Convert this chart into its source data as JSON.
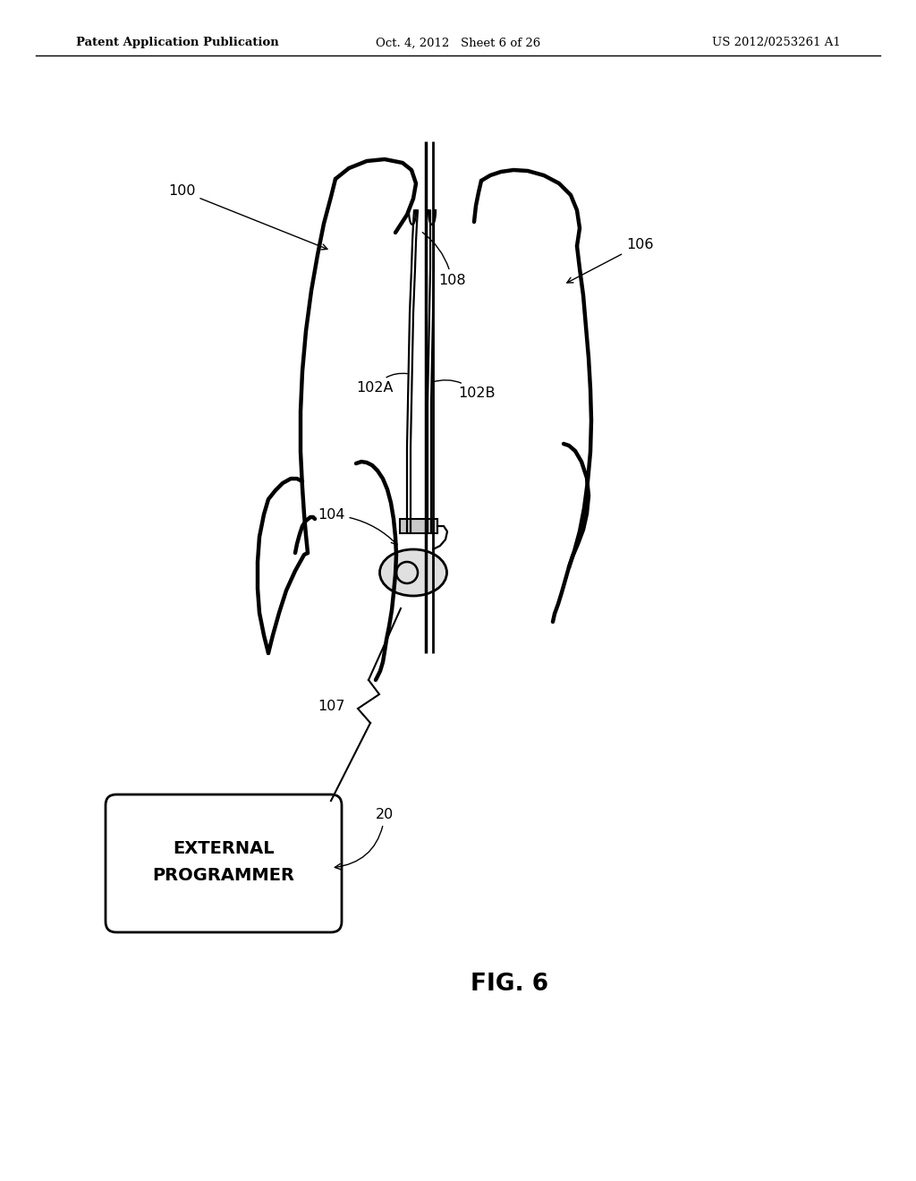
{
  "bg_color": "#ffffff",
  "line_color": "#000000",
  "header_left": "Patent Application Publication",
  "header_center": "Oct. 4, 2012   Sheet 6 of 26",
  "header_right": "US 2012/0253261 A1",
  "fig_label": "FIG. 6"
}
